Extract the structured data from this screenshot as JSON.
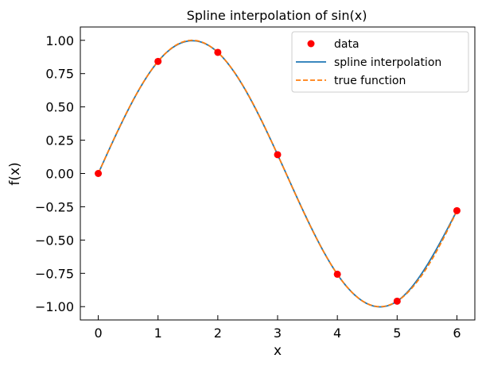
{
  "chart_data": {
    "type": "line",
    "title": "Spline interpolation of sin(x)",
    "xlabel": "x",
    "ylabel": "f(x)",
    "xlim": [
      -0.3,
      6.3
    ],
    "ylim": [
      -1.1,
      1.1
    ],
    "xticks": [
      0,
      1,
      2,
      3,
      4,
      5,
      6
    ],
    "xtick_labels": [
      "0",
      "1",
      "2",
      "3",
      "4",
      "5",
      "6"
    ],
    "yticks": [
      -1.0,
      -0.75,
      -0.5,
      -0.25,
      0.0,
      0.25,
      0.5,
      0.75,
      1.0
    ],
    "ytick_labels": [
      "−1.00",
      "−0.75",
      "−0.50",
      "−0.25",
      "0.00",
      "0.25",
      "0.50",
      "0.75",
      "1.00"
    ],
    "grid": false,
    "legend_position": "top-right",
    "series": [
      {
        "name": "data",
        "kind": "scatter",
        "color": "#ff0000",
        "x": [
          0,
          1,
          2,
          3,
          4,
          5,
          6
        ],
        "y": [
          0.0,
          0.8415,
          0.9093,
          0.1411,
          -0.7568,
          -0.9589,
          -0.2794
        ]
      },
      {
        "name": "spline interpolation",
        "kind": "line",
        "style": "solid",
        "color": "#1f77b4",
        "function": "natural cubic spline through data"
      },
      {
        "name": "true function",
        "kind": "line",
        "style": "dashed",
        "color": "#ff7f0e",
        "function": "sin(x)"
      }
    ]
  }
}
